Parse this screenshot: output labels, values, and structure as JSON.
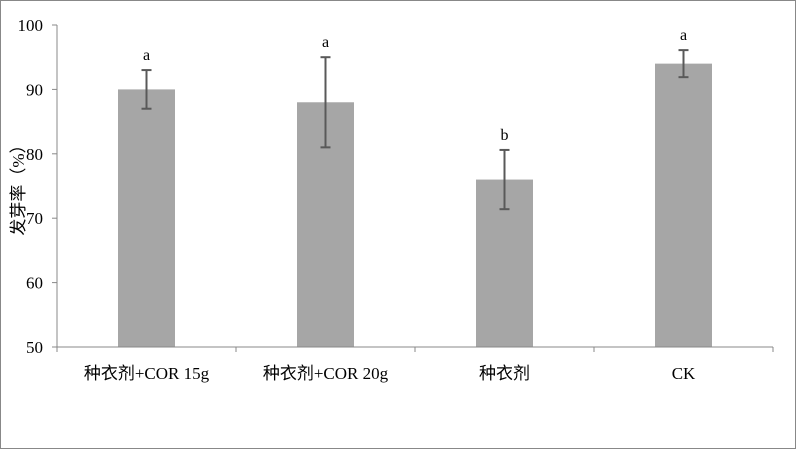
{
  "chart_data": {
    "type": "bar",
    "categories": [
      "种衣剂+COR 15g",
      "种衣剂+COR 20g",
      "种衣剂",
      "CK"
    ],
    "values": [
      90,
      88,
      76,
      94
    ],
    "error": [
      3,
      7,
      4.6,
      2.1
    ],
    "significance_labels": [
      "a",
      "a",
      "b",
      "a"
    ],
    "xlabel": "",
    "ylabel": "发芽率（%）",
    "ylim": [
      50,
      100
    ],
    "yticks": [
      50,
      60,
      70,
      80,
      90,
      100
    ],
    "grid": false,
    "bar_color": "#a6a6a6",
    "errorbar_color": "#595959"
  }
}
